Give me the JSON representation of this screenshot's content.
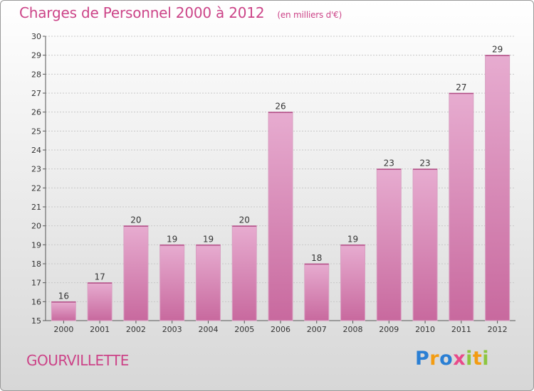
{
  "header": {
    "title": "Charges de Personnel 2000 à 2012",
    "unit": "(en milliers d'€)"
  },
  "commune": "GOURVILLETTE",
  "logo": {
    "text": "Proxiti",
    "letters": [
      {
        "ch": "P",
        "color": "#2a7fd4"
      },
      {
        "ch": "r",
        "color": "#f39c12"
      },
      {
        "ch": "o",
        "color": "#2a7fd4"
      },
      {
        "ch": "x",
        "color": "#e84a8a"
      },
      {
        "ch": "i",
        "color": "#8cc63f"
      },
      {
        "ch": "t",
        "color": "#f39c12"
      },
      {
        "ch": "i",
        "color": "#8cc63f"
      }
    ]
  },
  "colors": {
    "bar": "#c8699e",
    "bar_light": "#e7acd0",
    "accent": "#cc4488",
    "grid": "#c8c8c8",
    "axis": "#555555"
  },
  "chart_data": {
    "type": "bar",
    "categories": [
      "2000",
      "2001",
      "2002",
      "2003",
      "2004",
      "2005",
      "2006",
      "2007",
      "2008",
      "2009",
      "2010",
      "2011",
      "2012"
    ],
    "values": [
      16,
      17,
      20,
      19,
      19,
      20,
      26,
      18,
      19,
      23,
      23,
      27,
      29
    ],
    "ylim": [
      15,
      30
    ],
    "yticks": [
      15,
      16,
      17,
      18,
      19,
      20,
      21,
      22,
      23,
      24,
      25,
      26,
      27,
      28,
      29,
      30
    ],
    "grid": true,
    "xlabel": "",
    "ylabel": ""
  }
}
